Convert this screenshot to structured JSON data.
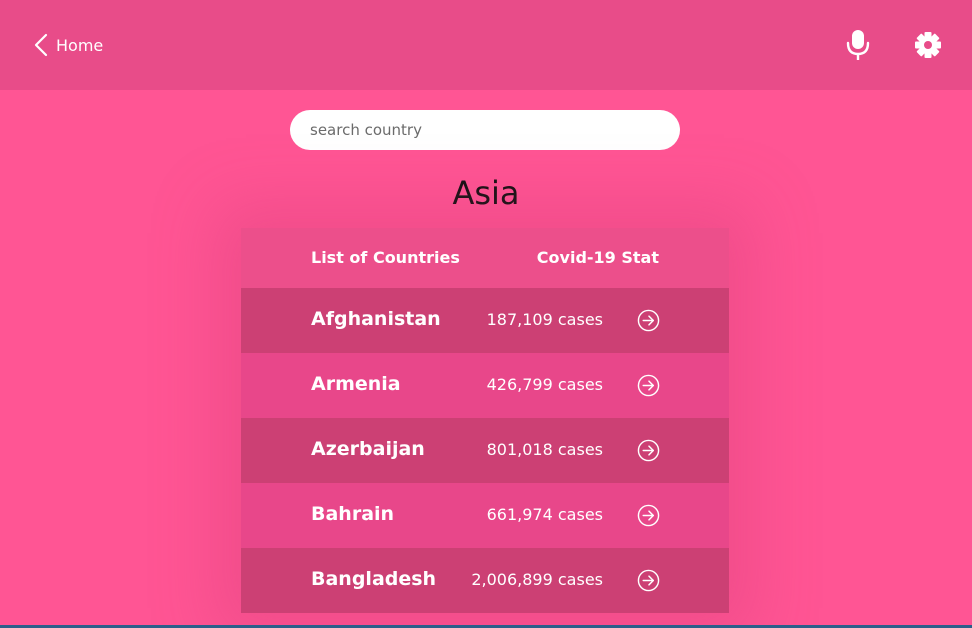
{
  "header": {
    "back_label": "Home",
    "mic_icon": "microphone-icon",
    "settings_icon": "gear-icon"
  },
  "search": {
    "placeholder": "search country",
    "value": ""
  },
  "region_title": "Asia",
  "table": {
    "col_left": "List of Countries",
    "col_right": "Covid-19 Stat",
    "rows": [
      {
        "country": "Afghanistan",
        "cases": "187,109 cases"
      },
      {
        "country": "Armenia",
        "cases": "426,799 cases"
      },
      {
        "country": "Azerbaijan",
        "cases": "801,018 cases"
      },
      {
        "country": "Bahrain",
        "cases": "661,974 cases"
      },
      {
        "country": "Bangladesh",
        "cases": "2,006,899 cases"
      }
    ]
  },
  "colors": {
    "background": "#ff5594",
    "header": "#e84c89",
    "row_dark": "#cc4074",
    "row_light": "#e8478a"
  }
}
